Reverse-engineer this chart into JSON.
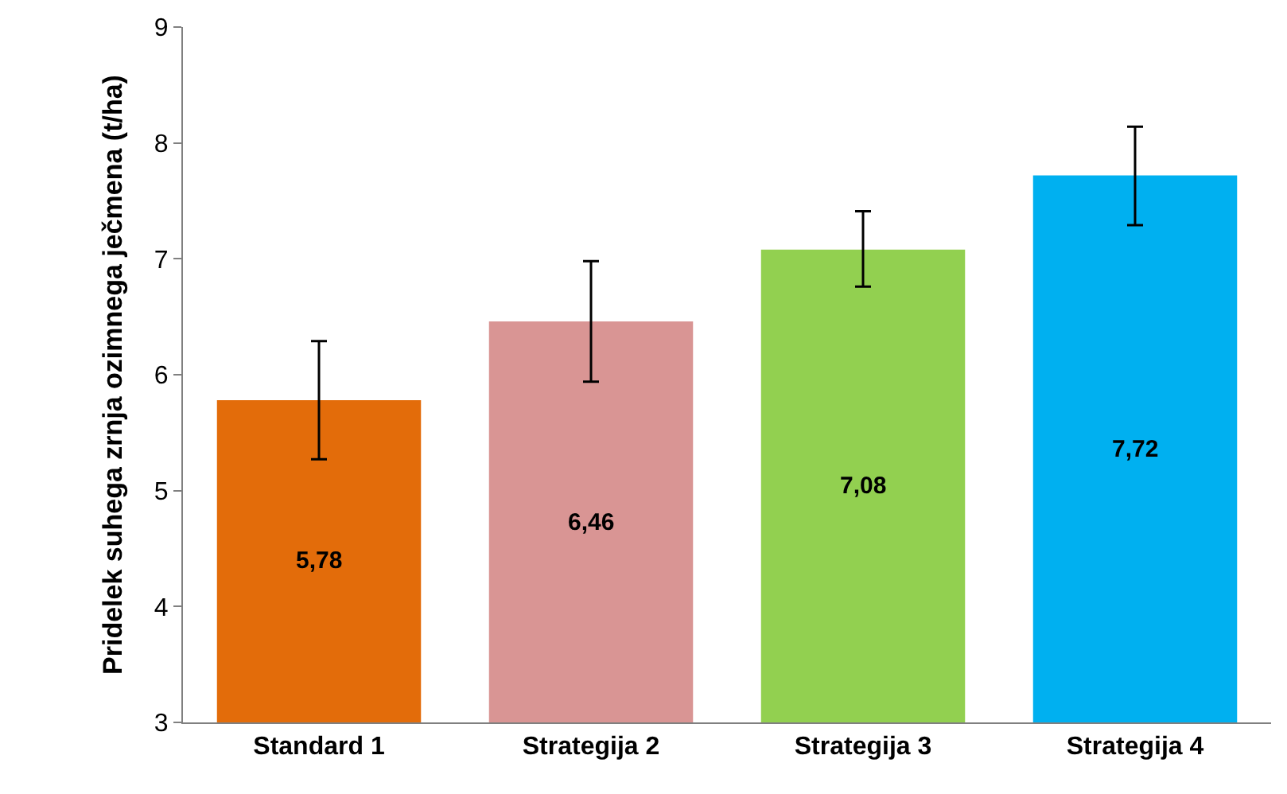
{
  "chart_data": {
    "type": "bar",
    "ylabel": "Pridelek suhega zrnja ozimnega ječmena (t/ha)",
    "categories": [
      "Standard 1",
      "Strategija 2",
      "Strategija 3",
      "Strategija 4"
    ],
    "values": [
      5.78,
      6.46,
      7.08,
      7.72
    ],
    "colors": [
      "#e36c0a",
      "#d99594",
      "#92d050",
      "#00b0f0"
    ],
    "errors": [
      [
        5.27,
        6.29
      ],
      [
        5.94,
        6.98
      ],
      [
        6.76,
        7.41
      ],
      [
        7.29,
        8.14
      ]
    ],
    "value_labels": [
      "5,78",
      "6,46",
      "7,08",
      "7,72"
    ],
    "ylim": [
      3,
      9
    ],
    "yticks": [
      3,
      4,
      5,
      6,
      7,
      8,
      9
    ]
  }
}
